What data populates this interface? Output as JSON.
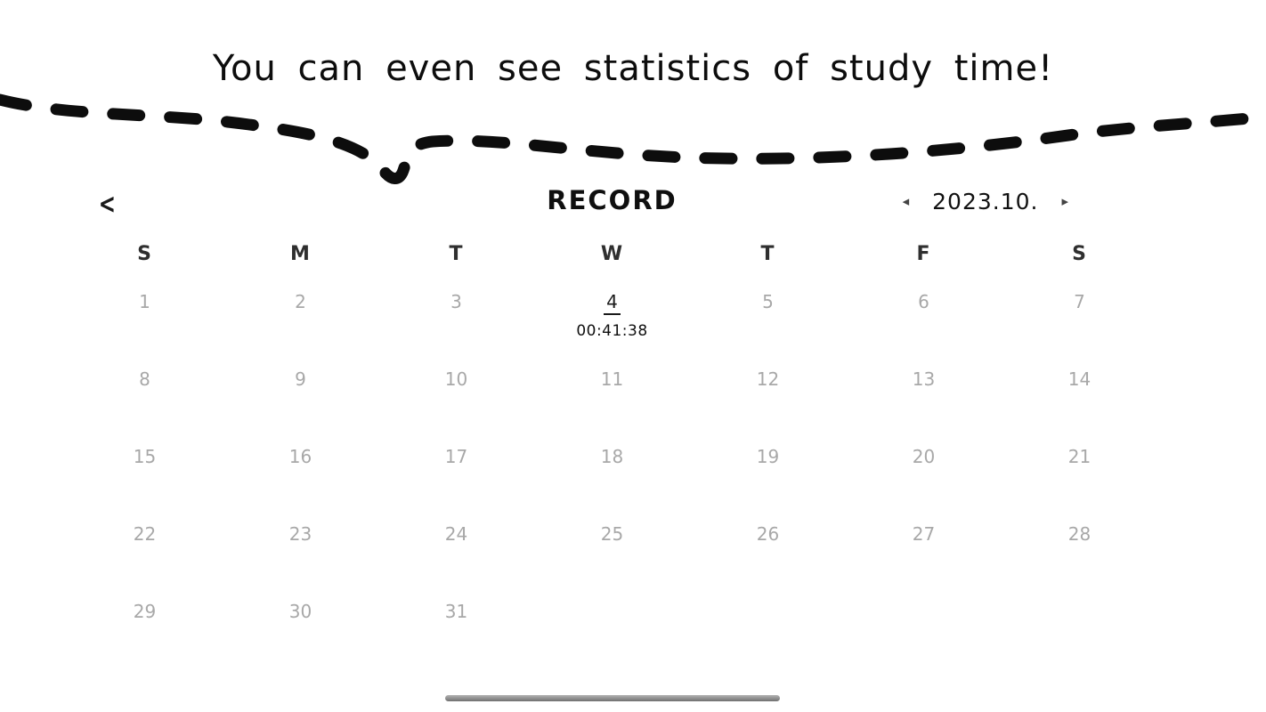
{
  "caption": "You can even see statistics of study time!",
  "icons": {
    "back": "<",
    "prev_month": "◂",
    "next_month": "▸"
  },
  "record": {
    "title": "RECORD",
    "month_nav": {
      "label": "2023.10."
    },
    "day_headers": [
      "S",
      "M",
      "T",
      "W",
      "T",
      "F",
      "S"
    ],
    "weeks": [
      [
        "1",
        "2",
        "3",
        "4",
        "5",
        "6",
        "7"
      ],
      [
        "8",
        "9",
        "10",
        "11",
        "12",
        "13",
        "14"
      ],
      [
        "15",
        "16",
        "17",
        "18",
        "19",
        "20",
        "21"
      ],
      [
        "22",
        "23",
        "24",
        "25",
        "26",
        "27",
        "28"
      ],
      [
        "29",
        "30",
        "31",
        "",
        "",
        "",
        ""
      ]
    ],
    "highlight": {
      "date": "4",
      "time": "00:41:38"
    }
  },
  "colors": {
    "ink": "#0d0d0d",
    "muted_day": "#a8a8a8",
    "highlight_day": "#1a1a1a",
    "home_bar": "#8c8c8c"
  }
}
